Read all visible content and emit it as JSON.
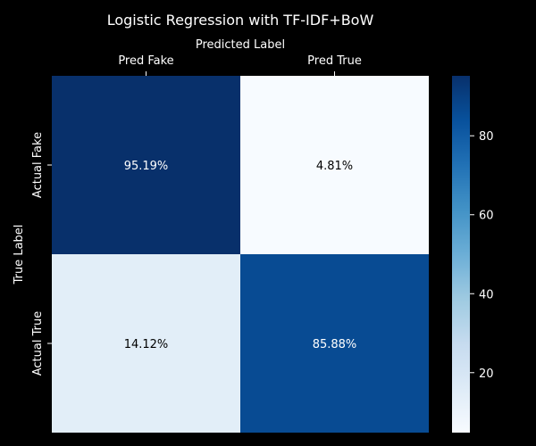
{
  "chart_data": {
    "type": "heatmap",
    "title": "Logistic Regression with TF-IDF+BoW",
    "xlabel": "Predicted Label",
    "ylabel": "True Label",
    "x_categories": [
      "Pred Fake",
      "Pred True"
    ],
    "y_categories": [
      "Actual Fake",
      "Actual True"
    ],
    "values": [
      [
        95.19,
        4.81
      ],
      [
        14.12,
        85.88
      ]
    ],
    "cell_labels": [
      [
        "95.19%",
        "4.81%"
      ],
      [
        "14.12%",
        "85.88%"
      ]
    ],
    "colorbar": {
      "ticks": [
        20,
        40,
        60,
        80
      ],
      "range": [
        4.81,
        95.19
      ],
      "colormap": "Blues"
    },
    "x_axis_position": "top",
    "grid": false,
    "colors": {
      "background": "#000000",
      "text": "#ffffff",
      "cell_text_dark": "#000000",
      "cell_text_light": "#ffffff"
    }
  }
}
